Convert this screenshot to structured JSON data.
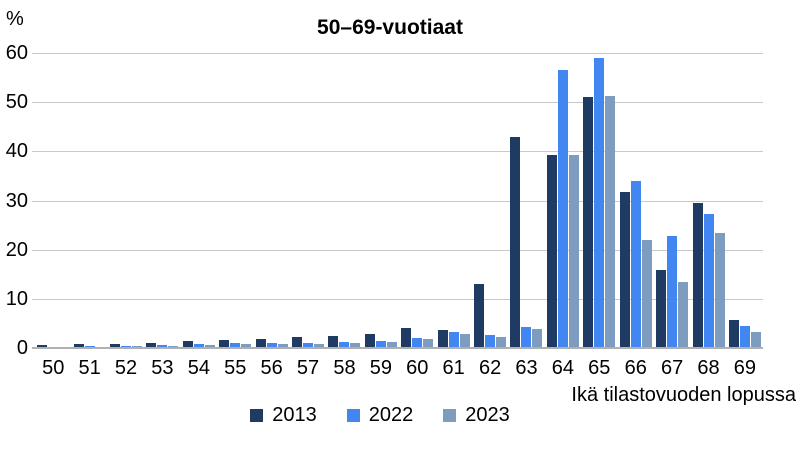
{
  "chart_data": {
    "type": "bar",
    "title": "50–69-vuotiaat",
    "ylabel": "%",
    "xlabel": "Ikä tilastovuoden lopussa",
    "ylim": [
      0,
      60
    ],
    "yticks": [
      0,
      10,
      20,
      30,
      40,
      50,
      60
    ],
    "grid": true,
    "legend_position": "bottom",
    "categories": [
      "50",
      "51",
      "52",
      "53",
      "54",
      "55",
      "56",
      "57",
      "58",
      "59",
      "60",
      "61",
      "62",
      "63",
      "64",
      "65",
      "66",
      "67",
      "68",
      "69"
    ],
    "series": [
      {
        "name": "2013",
        "color": "#1f3a63",
        "values": [
          0.6,
          0.8,
          0.9,
          1.1,
          1.4,
          1.6,
          1.9,
          2.2,
          2.5,
          2.8,
          4.1,
          3.6,
          13.0,
          43.0,
          39.3,
          51.0,
          31.8,
          15.8,
          29.4,
          5.6
        ]
      },
      {
        "name": "2022",
        "color": "#4286f2",
        "values": [
          0.3,
          0.4,
          0.5,
          0.6,
          0.8,
          1.0,
          1.1,
          1.1,
          1.3,
          1.5,
          2.0,
          3.2,
          2.7,
          4.2,
          56.5,
          59.0,
          34.0,
          22.7,
          27.3,
          4.4
        ]
      },
      {
        "name": "2023",
        "color": "#7e9cc0",
        "values": [
          0.25,
          0.3,
          0.35,
          0.5,
          0.6,
          0.8,
          0.9,
          0.9,
          1.1,
          1.3,
          1.8,
          2.8,
          2.3,
          3.9,
          39.2,
          51.3,
          22.0,
          13.4,
          23.4,
          3.2
        ]
      }
    ],
    "colors": {
      "gridline": "#c9c9c9",
      "axis_line": "#b0b0b0",
      "text": "#000000",
      "background": "#ffffff"
    }
  }
}
